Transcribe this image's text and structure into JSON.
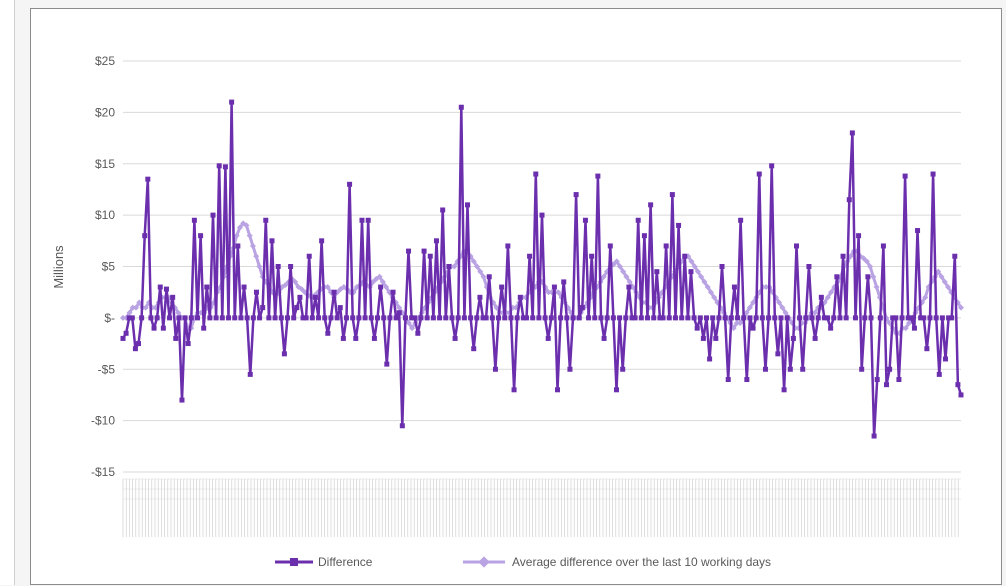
{
  "colors": {
    "difference": "#6b2fae",
    "average": "#b9a3e3",
    "grid": "#d9d9d9",
    "text": "#595959"
  },
  "chart_data": {
    "type": "line",
    "ylabel": "Millions",
    "ylim": [
      -15,
      25
    ],
    "yticks": [
      {
        "value": 25,
        "label": "$25"
      },
      {
        "value": 20,
        "label": "$20"
      },
      {
        "value": 15,
        "label": "$15"
      },
      {
        "value": 10,
        "label": "$10"
      },
      {
        "value": 5,
        "label": "$5"
      },
      {
        "value": 0,
        "label": "$-"
      },
      {
        "value": -5,
        "label": "-$5"
      },
      {
        "value": -10,
        "label": "-$10"
      },
      {
        "value": -15,
        "label": "-$15"
      }
    ],
    "grid": true,
    "legend_position": "bottom",
    "series": [
      {
        "name": "Difference",
        "marker": "square",
        "values": [
          -2,
          -1.5,
          0,
          0,
          -3,
          -2.5,
          0,
          8,
          13.5,
          0,
          -1,
          0,
          3,
          -1,
          2.8,
          0,
          2,
          -2,
          0,
          -8,
          0,
          -2.5,
          0,
          9.5,
          0,
          8,
          -1,
          3,
          0,
          10,
          0,
          14.8,
          0,
          14.7,
          0,
          21,
          0,
          7,
          0,
          3,
          0,
          -5.5,
          0,
          2.5,
          0,
          1,
          9.5,
          0,
          7.5,
          0,
          5,
          0,
          -3.5,
          0,
          5,
          0,
          1,
          2,
          0,
          0,
          6,
          0,
          2,
          0,
          7.5,
          0,
          -1.5,
          0,
          2.5,
          0,
          1,
          -2,
          0,
          13,
          0,
          -2,
          0,
          9.5,
          0,
          9.5,
          0,
          -2,
          0,
          3,
          0,
          -4.5,
          0,
          2.5,
          0,
          0.5,
          -10.5,
          0,
          6.5,
          0,
          0,
          -1.5,
          0,
          6.5,
          0,
          6,
          0,
          7.5,
          0,
          10.5,
          0,
          5,
          0,
          -2,
          0,
          20.5,
          0,
          11,
          0,
          -3,
          0,
          2,
          0,
          0,
          4,
          0,
          -5,
          0,
          3,
          0,
          7,
          0,
          -7,
          0,
          2,
          0,
          0,
          6,
          0,
          14,
          0,
          10,
          0,
          -2,
          0,
          3,
          -7,
          0,
          3.5,
          0,
          -5,
          0,
          12,
          0,
          1,
          9.5,
          0,
          6,
          0,
          13.8,
          0,
          -2,
          0,
          7,
          0,
          -7,
          0,
          -5,
          0,
          3,
          0,
          0,
          9.5,
          0,
          8,
          0,
          11,
          0,
          4.5,
          0,
          0,
          7,
          0,
          12,
          0,
          9,
          0,
          6,
          0,
          4.5,
          0,
          -1,
          0,
          -2,
          0,
          -4,
          0,
          -2,
          0,
          5,
          0,
          -6,
          0,
          3,
          0,
          9.5,
          0,
          -6,
          0,
          -1,
          0,
          14,
          0,
          -5,
          0,
          14.8,
          0,
          -3.5,
          0,
          -7,
          0,
          -5,
          -2,
          7,
          0,
          -5,
          0,
          5,
          0,
          -2,
          0,
          2,
          0,
          0,
          -1,
          0,
          4,
          0,
          6,
          0,
          11.5,
          18,
          0,
          8,
          -5,
          0,
          4,
          0,
          -11.5,
          -6,
          0,
          7,
          -6.5,
          -5,
          0,
          0,
          -6,
          0,
          13.8,
          0,
          0,
          -1,
          8.5,
          0,
          0,
          -3,
          0,
          14,
          0,
          -5.5,
          0,
          -4,
          0,
          0,
          6,
          -6.5,
          -7.5
        ]
      },
      {
        "name": "Average difference over the last 10 working days",
        "marker": "diamond",
        "values": [
          0,
          0,
          0.5,
          1,
          1,
          1.5,
          1,
          1,
          1.5,
          1,
          1,
          1.5,
          2,
          2,
          2,
          1.5,
          1,
          0.5,
          0,
          0,
          -1,
          -1,
          0,
          0.5,
          0.5,
          0.5,
          1,
          1,
          1.5,
          2.5,
          3,
          4,
          5,
          6,
          6.8,
          8,
          8.8,
          9.2,
          9,
          8,
          7,
          6,
          5,
          4,
          3.5,
          3,
          2.5,
          2.2,
          2.5,
          3,
          3.2,
          3.5,
          3.8,
          3.5,
          3,
          2.8,
          2.5,
          2.2,
          2,
          2.2,
          2.5,
          2.8,
          3,
          3,
          2.5,
          2,
          2.5,
          2.8,
          3,
          2.8,
          2.5,
          2.5,
          3,
          3.2,
          3.5,
          3.2,
          3,
          3.5,
          3.8,
          4,
          3.5,
          3,
          2.5,
          2,
          1.5,
          1,
          0.5,
          0,
          -0.5,
          -1,
          -0.5,
          0,
          0.5,
          1,
          1.5,
          2,
          2.5,
          3,
          3.5,
          4,
          4.5,
          5,
          5,
          5.5,
          6,
          6.5,
          6.5,
          6,
          5.5,
          5,
          4.5,
          4,
          3,
          2,
          1.5,
          1,
          0.5,
          0.5,
          0.5,
          0.5,
          1,
          1,
          1.5,
          2,
          2,
          2.5,
          3,
          3,
          3.5,
          3.5,
          3,
          2.5,
          2.5,
          2.5,
          2.5,
          2,
          1.5,
          1,
          0.5,
          0,
          0,
          0.5,
          1,
          1.5,
          2,
          2.5,
          3,
          3.5,
          4,
          4.5,
          5,
          5.2,
          5.5,
          5,
          4.5,
          4,
          3.5,
          3,
          2.5,
          2,
          1.5,
          1.5,
          1,
          1,
          1.5,
          2,
          2.5,
          3,
          3.5,
          4,
          4.5,
          5,
          5.5,
          6,
          6,
          5.5,
          5,
          4.5,
          4,
          3.5,
          3,
          2.5,
          2,
          1.5,
          1,
          0.5,
          0,
          -0.5,
          -1,
          -0.5,
          -0.5,
          0,
          0.5,
          1,
          1.5,
          2,
          2.5,
          3,
          3,
          3,
          2.5,
          2,
          1.5,
          1,
          0.5,
          0,
          -0.5,
          -1,
          -1,
          -0.5,
          -0.5,
          0,
          0.5,
          0.5,
          1,
          1,
          1.5,
          2,
          2.5,
          3,
          3.5,
          4,
          5,
          5.5,
          6,
          6.5,
          6.5,
          6,
          5.8,
          5.5,
          5,
          4,
          3,
          2,
          1,
          0,
          -0.5,
          -1,
          -1.5,
          -1.5,
          -1,
          -1,
          -0.5,
          0,
          0.5,
          1,
          1.5,
          2,
          3,
          3.5,
          4,
          4.5,
          4,
          3.5,
          3,
          2.5,
          2,
          1.5,
          1
        ]
      }
    ]
  }
}
